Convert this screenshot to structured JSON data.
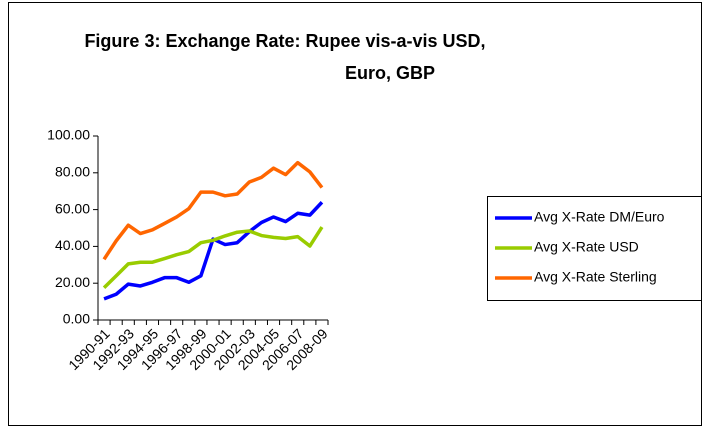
{
  "chart_data": {
    "type": "line",
    "title": [
      "Figure 3: Exchange Rate: Rupee vis-a-vis USD,",
      "Euro, GBP"
    ],
    "categories": [
      "1990-91",
      null,
      "1992-93",
      null,
      "1994-95",
      null,
      "1996-97",
      null,
      "1998-99",
      null,
      "2000-01",
      null,
      "2002-03",
      null,
      "2004-05",
      null,
      "2006-07",
      null,
      "2008-09"
    ],
    "series": [
      {
        "name": "Avg X-Rate DM/Euro",
        "color": "#0000ff",
        "values": [
          11.5,
          14,
          19.5,
          18.5,
          20.5,
          23,
          23,
          20.5,
          24,
          44,
          41,
          42,
          48,
          53,
          56,
          53.5,
          58,
          57,
          64
        ]
      },
      {
        "name": "Avg X-Rate USD",
        "color": "#99cc00",
        "values": [
          17.5,
          24,
          30.5,
          31.4,
          31.4,
          33.4,
          35.5,
          37.2,
          42,
          43.3,
          45.7,
          47.7,
          48.4,
          45.9,
          44.9,
          44.3,
          45.3,
          40.2,
          50.5
        ]
      },
      {
        "name": "Avg X-Rate Sterling",
        "color": "#ff6600",
        "values": [
          33,
          43,
          51.5,
          47,
          49,
          52.5,
          56,
          60.5,
          69.5,
          69.5,
          67.5,
          68.5,
          75,
          77.5,
          82.5,
          79,
          85.5,
          80.5,
          72
        ]
      }
    ],
    "ylim": [
      0,
      100
    ],
    "yticks": [
      {
        "value": 0,
        "label": "0.00"
      },
      {
        "value": 20,
        "label": "20.00"
      },
      {
        "value": 40,
        "label": "40.00"
      },
      {
        "value": 60,
        "label": "60.00"
      },
      {
        "value": 80,
        "label": "80.00"
      },
      {
        "value": 100,
        "label": "100.00"
      }
    ],
    "legend": "right"
  }
}
